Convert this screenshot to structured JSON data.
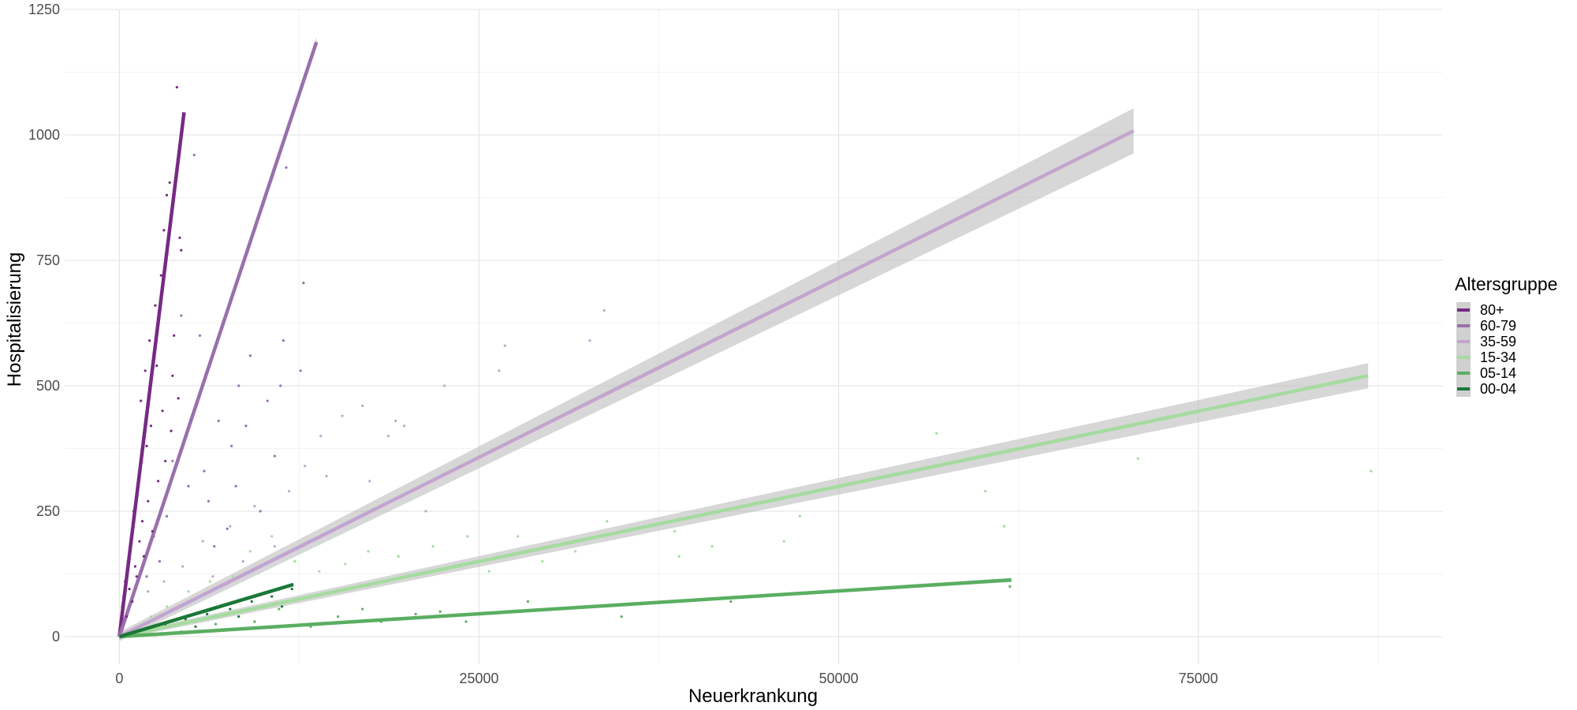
{
  "chart_data": {
    "type": "scatter",
    "xlabel": "Neuerkrankung",
    "ylabel": "Hospitalisierung",
    "xlim": [
      -3800,
      92000
    ],
    "ylim": [
      -55,
      1250
    ],
    "x_ticks": [
      0,
      25000,
      50000,
      75000
    ],
    "x_tick_labels": [
      "0",
      "25000",
      "50000",
      "75000"
    ],
    "y_ticks": [
      0,
      250,
      500,
      750,
      1000,
      1250
    ],
    "y_tick_labels": [
      "0",
      "250",
      "500",
      "750",
      "1000",
      "1250"
    ],
    "grid": true,
    "legend": {
      "title": "Altersgruppe",
      "placement": "right"
    },
    "series": [
      {
        "name": "80+",
        "color": "#762a83",
        "fit": {
          "x": [
            0,
            4500
          ],
          "y": [
            0,
            1045
          ],
          "band": 5
        },
        "points": [
          [
            4000,
            1095
          ],
          [
            3500,
            905
          ],
          [
            3300,
            880
          ],
          [
            4200,
            795
          ],
          [
            4300,
            770
          ],
          [
            3100,
            810
          ],
          [
            2900,
            720
          ],
          [
            2500,
            660
          ],
          [
            3800,
            600
          ],
          [
            3700,
            520
          ],
          [
            4100,
            475
          ],
          [
            2100,
            590
          ],
          [
            1800,
            530
          ],
          [
            1500,
            470
          ],
          [
            2200,
            420
          ],
          [
            1900,
            380
          ],
          [
            3200,
            350
          ],
          [
            2700,
            310
          ],
          [
            1300,
            300
          ],
          [
            1000,
            250
          ],
          [
            1600,
            230
          ],
          [
            2300,
            210
          ],
          [
            800,
            180
          ],
          [
            600,
            150
          ],
          [
            1100,
            140
          ],
          [
            400,
            110
          ],
          [
            300,
            80
          ],
          [
            200,
            60
          ],
          [
            700,
            95
          ],
          [
            1400,
            190
          ],
          [
            2600,
            540
          ],
          [
            3000,
            450
          ],
          [
            3600,
            410
          ],
          [
            2000,
            270
          ],
          [
            500,
            40
          ],
          [
            900,
            70
          ],
          [
            1200,
            120
          ],
          [
            1700,
            160
          ]
        ]
      },
      {
        "name": "60-79",
        "color": "#9970ab",
        "fit": {
          "x": [
            0,
            13700
          ],
          "y": [
            0,
            1185
          ],
          "band": 10
        },
        "points": [
          [
            5200,
            960
          ],
          [
            11600,
            935
          ],
          [
            12800,
            705
          ],
          [
            11400,
            590
          ],
          [
            9100,
            560
          ],
          [
            8300,
            500
          ],
          [
            12600,
            530
          ],
          [
            10300,
            470
          ],
          [
            6900,
            430
          ],
          [
            7800,
            380
          ],
          [
            10800,
            360
          ],
          [
            5900,
            330
          ],
          [
            4800,
            300
          ],
          [
            6200,
            270
          ],
          [
            3300,
            240
          ],
          [
            2400,
            200
          ],
          [
            7500,
            215
          ],
          [
            9800,
            250
          ],
          [
            8800,
            420
          ],
          [
            11200,
            500
          ],
          [
            4300,
            640
          ],
          [
            5600,
            600
          ],
          [
            3700,
            350
          ],
          [
            2800,
            150
          ],
          [
            1900,
            120
          ],
          [
            6600,
            180
          ],
          [
            8100,
            300
          ]
        ]
      },
      {
        "name": "35-59",
        "color": "#c2a5cf",
        "fit": {
          "x": [
            0,
            70500
          ],
          "y": [
            0,
            1008
          ],
          "band": 45
        },
        "points": [
          [
            33700,
            650
          ],
          [
            26800,
            580
          ],
          [
            32700,
            590
          ],
          [
            22600,
            500
          ],
          [
            26400,
            530
          ],
          [
            15500,
            440
          ],
          [
            16900,
            460
          ],
          [
            19200,
            430
          ],
          [
            19800,
            420
          ],
          [
            14000,
            400
          ],
          [
            18700,
            400
          ],
          [
            12900,
            340
          ],
          [
            14400,
            320
          ],
          [
            11800,
            290
          ],
          [
            9400,
            260
          ],
          [
            7700,
            220
          ],
          [
            5800,
            190
          ],
          [
            4400,
            140
          ],
          [
            3100,
            110
          ],
          [
            2000,
            90
          ],
          [
            10800,
            180
          ],
          [
            8600,
            150
          ],
          [
            6500,
            120
          ],
          [
            17400,
            310
          ],
          [
            21300,
            250
          ]
        ]
      },
      {
        "name": "15-34",
        "color": "#a6dba0",
        "fit": {
          "x": [
            0,
            86800
          ],
          "y": [
            0,
            520
          ],
          "band": 25
        },
        "points": [
          [
            56800,
            405
          ],
          [
            70800,
            355
          ],
          [
            87000,
            330
          ],
          [
            60200,
            290
          ],
          [
            61500,
            220
          ],
          [
            47300,
            240
          ],
          [
            46200,
            190
          ],
          [
            41200,
            180
          ],
          [
            38600,
            210
          ],
          [
            33900,
            230
          ],
          [
            31700,
            170
          ],
          [
            29400,
            150
          ],
          [
            27700,
            200
          ],
          [
            24200,
            200
          ],
          [
            21800,
            180
          ],
          [
            19400,
            160
          ],
          [
            17300,
            170
          ],
          [
            15700,
            145
          ],
          [
            13900,
            130
          ],
          [
            12200,
            150
          ],
          [
            10600,
            200
          ],
          [
            9100,
            170
          ],
          [
            7900,
            120
          ],
          [
            6300,
            110
          ],
          [
            4800,
            90
          ],
          [
            3300,
            60
          ],
          [
            2200,
            40
          ],
          [
            38900,
            160
          ],
          [
            25700,
            130
          ]
        ]
      },
      {
        "name": "05-14",
        "color": "#5aae61",
        "fit": {
          "x": [
            0,
            62000
          ],
          "y": [
            0,
            113
          ],
          "band": 4
        },
        "points": [
          [
            61900,
            100
          ],
          [
            42500,
            70
          ],
          [
            34900,
            40
          ],
          [
            28400,
            70
          ],
          [
            24100,
            30
          ],
          [
            20600,
            45
          ],
          [
            18200,
            30
          ],
          [
            15200,
            40
          ],
          [
            13300,
            20
          ],
          [
            11100,
            55
          ],
          [
            9400,
            30
          ],
          [
            8100,
            15
          ],
          [
            6700,
            25
          ],
          [
            4300,
            10
          ],
          [
            2600,
            5
          ],
          [
            16900,
            55
          ],
          [
            22300,
            50
          ]
        ]
      },
      {
        "name": "00-04",
        "color": "#1b7837",
        "fit": {
          "x": [
            0,
            12100
          ],
          "y": [
            0,
            104
          ],
          "band": 3
        },
        "points": [
          [
            12000,
            95
          ],
          [
            10600,
            80
          ],
          [
            9200,
            70
          ],
          [
            7700,
            55
          ],
          [
            6100,
            45
          ],
          [
            4600,
            35
          ],
          [
            3200,
            25
          ],
          [
            1800,
            15
          ],
          [
            900,
            8
          ],
          [
            11300,
            60
          ],
          [
            8300,
            40
          ],
          [
            5300,
            20
          ]
        ]
      }
    ]
  }
}
